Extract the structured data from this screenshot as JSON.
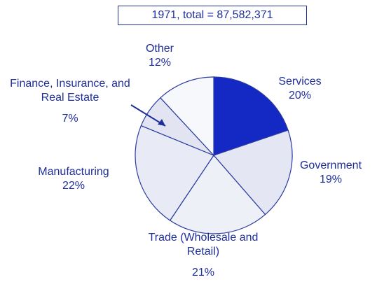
{
  "chart_data": {
    "type": "pie",
    "title": "1971, total = 87,582,371",
    "categories": [
      "Services",
      "Government",
      "Trade (Wholesale and Retail)",
      "Manufacturing",
      "Finance, Insurance, and Real Estate",
      "Other"
    ],
    "values": [
      20,
      19,
      21,
      22,
      7,
      12
    ],
    "value_labels": [
      "20%",
      "19%",
      "21%",
      "22%",
      "7%",
      "12%"
    ],
    "colors": [
      "#1428c4",
      "#e4e7f3",
      "#eef0f8",
      "#e8ebf5",
      "#e2e5f1",
      "#f7f8fc"
    ]
  }
}
